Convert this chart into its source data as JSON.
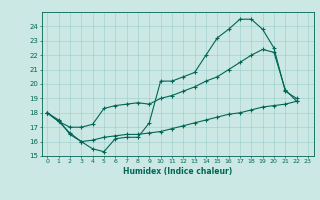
{
  "title": "",
  "xlabel": "Humidex (Indice chaleur)",
  "ylabel": "",
  "bg_color": "#cce8e4",
  "line_color": "#006655",
  "grid_color": "#99cccc",
  "ylim": [
    15,
    25
  ],
  "xlim": [
    -0.5,
    23.5
  ],
  "yticks": [
    15,
    16,
    17,
    18,
    19,
    20,
    21,
    22,
    23,
    24
  ],
  "xticks": [
    0,
    1,
    2,
    3,
    4,
    5,
    6,
    7,
    8,
    9,
    10,
    11,
    12,
    13,
    14,
    15,
    16,
    17,
    18,
    19,
    20,
    21,
    22,
    23
  ],
  "line1_x": [
    0,
    1,
    2,
    3,
    4,
    5,
    6,
    7,
    8,
    9,
    10,
    11,
    12,
    13,
    14,
    15,
    16,
    17,
    18,
    19,
    20,
    21,
    22
  ],
  "line1_y": [
    18.0,
    17.5,
    16.5,
    16.0,
    15.5,
    15.3,
    16.2,
    16.3,
    16.3,
    17.3,
    20.2,
    20.2,
    20.5,
    20.8,
    22.0,
    23.2,
    23.8,
    24.5,
    24.5,
    23.8,
    22.5,
    19.5,
    19.0
  ],
  "line2_x": [
    0,
    1,
    2,
    3,
    4,
    5,
    6,
    7,
    8,
    9,
    10,
    11,
    12,
    13,
    14,
    15,
    16,
    17,
    18,
    19,
    20,
    21,
    22
  ],
  "line2_y": [
    18.0,
    17.4,
    17.0,
    17.0,
    17.2,
    18.3,
    18.5,
    18.6,
    18.7,
    18.6,
    19.0,
    19.2,
    19.5,
    19.8,
    20.2,
    20.5,
    21.0,
    21.5,
    22.0,
    22.4,
    22.2,
    19.6,
    18.8
  ],
  "line3_x": [
    0,
    1,
    2,
    3,
    4,
    5,
    6,
    7,
    8,
    9,
    10,
    11,
    12,
    13,
    14,
    15,
    16,
    17,
    18,
    19,
    20,
    21,
    22
  ],
  "line3_y": [
    18.0,
    17.4,
    16.6,
    16.0,
    16.1,
    16.3,
    16.4,
    16.5,
    16.5,
    16.6,
    16.7,
    16.9,
    17.1,
    17.3,
    17.5,
    17.7,
    17.9,
    18.0,
    18.2,
    18.4,
    18.5,
    18.6,
    18.8
  ]
}
